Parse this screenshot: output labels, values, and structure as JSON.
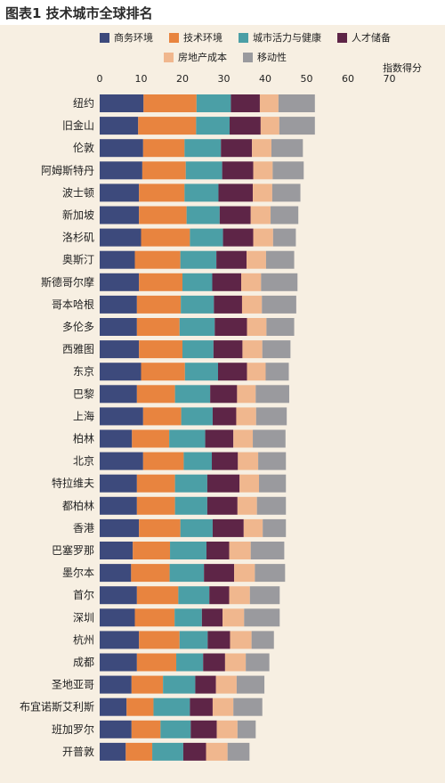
{
  "title": "图表1 技术城市全球排名",
  "unit_label": "指数得分",
  "chart_data": {
    "type": "bar",
    "orientation": "horizontal",
    "stacked": true,
    "xlim": [
      0,
      70
    ],
    "xticks": [
      0,
      10,
      20,
      30,
      40,
      50,
      60,
      70
    ],
    "legend_position": "top",
    "series": [
      {
        "name": "商务环境",
        "color": "#3d4a7c"
      },
      {
        "name": "技术环境",
        "color": "#e8843f"
      },
      {
        "name": "城市活力与健康",
        "color": "#4b9fa6"
      },
      {
        "name": "人才储备",
        "color": "#5e2547"
      },
      {
        "name": "房地产成本",
        "color": "#f0b78e"
      },
      {
        "name": "移动性",
        "color": "#9a9a9e"
      }
    ],
    "categories": [
      "纽约",
      "旧金山",
      "伦敦",
      "阿姆斯特丹",
      "波士顿",
      "新加坡",
      "洛杉矶",
      "奥斯汀",
      "斯德哥尔摩",
      "哥本哈根",
      "多伦多",
      "西雅图",
      "东京",
      "巴黎",
      "上海",
      "柏林",
      "北京",
      "特拉维夫",
      "都柏林",
      "香港",
      "巴塞罗那",
      "墨尔本",
      "首尔",
      "深圳",
      "杭州",
      "成都",
      "圣地亚哥",
      "布宜诺斯艾利斯",
      "班加罗尔",
      "开普敦"
    ],
    "values": [
      [
        10.6,
        12.8,
        8.3,
        7.0,
        4.5,
        8.8
      ],
      [
        9.3,
        14.0,
        8.1,
        7.5,
        4.5,
        8.6
      ],
      [
        10.5,
        10.0,
        8.8,
        7.5,
        4.7,
        7.6
      ],
      [
        10.3,
        10.5,
        8.8,
        7.5,
        4.7,
        7.5
      ],
      [
        9.5,
        11.0,
        8.2,
        8.3,
        4.7,
        6.8
      ],
      [
        9.5,
        11.5,
        8.0,
        7.5,
        4.8,
        6.7
      ],
      [
        10.0,
        11.8,
        8.0,
        7.3,
        4.8,
        5.5
      ],
      [
        8.5,
        11.0,
        8.7,
        7.3,
        4.7,
        6.8
      ],
      [
        9.5,
        10.5,
        7.2,
        7.0,
        4.8,
        8.8
      ],
      [
        9.0,
        10.6,
        8.0,
        6.8,
        4.8,
        8.3
      ],
      [
        9.0,
        10.3,
        8.5,
        7.8,
        4.7,
        6.7
      ],
      [
        9.5,
        10.5,
        7.5,
        7.0,
        4.8,
        6.8
      ],
      [
        10.0,
        10.6,
        8.0,
        7.0,
        4.5,
        5.6
      ],
      [
        9.0,
        9.2,
        8.5,
        6.5,
        4.5,
        8.1
      ],
      [
        10.5,
        9.2,
        7.6,
        5.7,
        4.8,
        7.4
      ],
      [
        7.8,
        9.0,
        8.7,
        6.8,
        4.7,
        7.9
      ],
      [
        10.5,
        9.8,
        6.8,
        6.3,
        4.9,
        6.7
      ],
      [
        9.0,
        9.2,
        7.8,
        7.8,
        4.7,
        6.5
      ],
      [
        9.0,
        9.2,
        7.8,
        7.3,
        4.7,
        7.0
      ],
      [
        9.5,
        10.0,
        7.8,
        7.5,
        4.6,
        5.6
      ],
      [
        8.0,
        9.0,
        8.8,
        5.5,
        5.2,
        8.1
      ],
      [
        7.6,
        9.3,
        8.3,
        7.3,
        5.0,
        7.3
      ],
      [
        9.0,
        10.0,
        7.5,
        4.8,
        5.0,
        7.2
      ],
      [
        8.5,
        9.6,
        6.6,
        5.0,
        5.2,
        8.6
      ],
      [
        9.5,
        9.8,
        6.8,
        5.4,
        5.2,
        5.4
      ],
      [
        9.0,
        9.5,
        6.5,
        5.3,
        5.0,
        5.7
      ],
      [
        7.7,
        7.6,
        7.8,
        5.0,
        5.0,
        6.7
      ],
      [
        6.5,
        6.5,
        8.8,
        5.5,
        5.0,
        7.0
      ],
      [
        7.7,
        7.0,
        7.3,
        6.3,
        5.0,
        4.4
      ],
      [
        6.3,
        6.4,
        7.5,
        5.5,
        5.2,
        5.3
      ]
    ]
  }
}
